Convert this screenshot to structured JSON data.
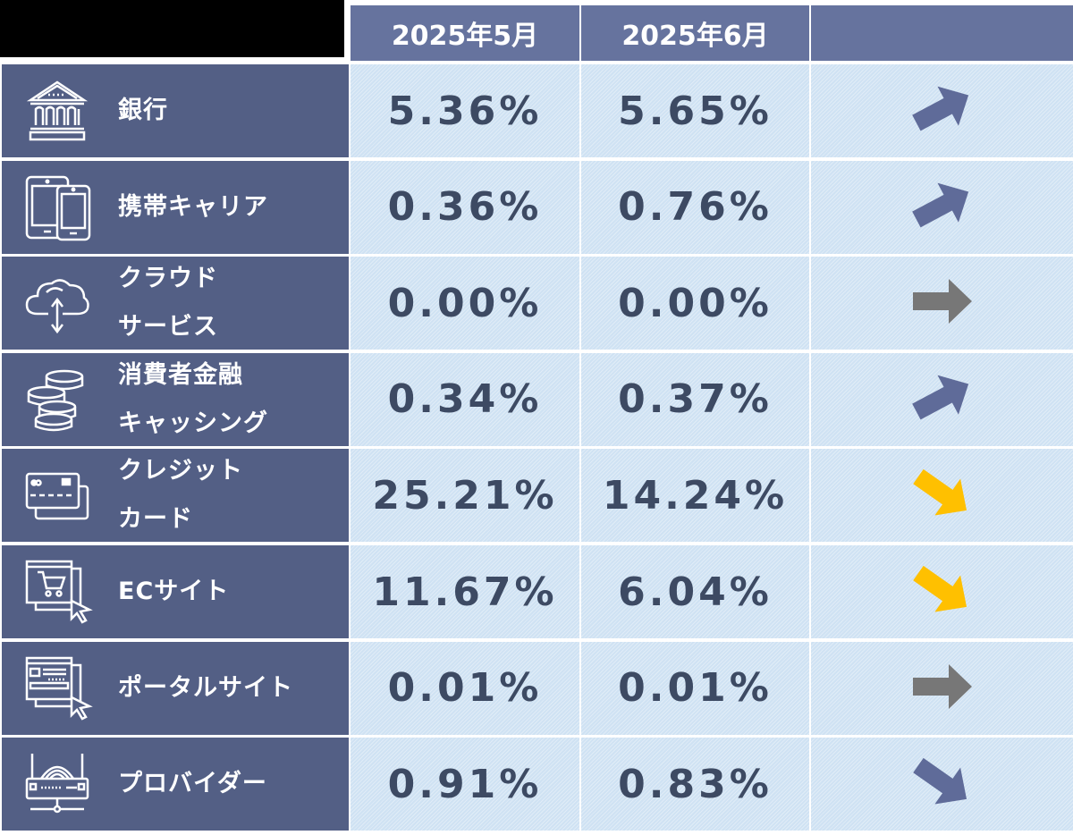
{
  "header": {
    "col1": "2025年5月",
    "col2": "2025年6月",
    "col3": ""
  },
  "rows": [
    {
      "line1": "銀行",
      "line2": "",
      "icon": "bank-icon",
      "may": "5.36%",
      "june": "5.65%",
      "trend": "up",
      "trend_color": "#5f6b99"
    },
    {
      "line1": "携帯キャリア",
      "line2": "",
      "icon": "mobile-phones-icon",
      "may": "0.36%",
      "june": "0.76%",
      "trend": "up",
      "trend_color": "#5f6b99"
    },
    {
      "line1": "クラウド",
      "line2": "サービス",
      "icon": "cloud-transfer-icon",
      "may": "0.00%",
      "june": "0.00%",
      "trend": "flat",
      "trend_color": "#777777"
    },
    {
      "line1": "消費者金融",
      "line2": "キャッシング",
      "icon": "coin-stack-icon",
      "may": "0.34%",
      "june": "0.37%",
      "trend": "up",
      "trend_color": "#5f6b99"
    },
    {
      "line1": "クレジット",
      "line2": "カード",
      "icon": "credit-card-icon",
      "may": "25.21%",
      "june": "14.24%",
      "trend": "down",
      "trend_color": "#ffc000"
    },
    {
      "line1": "ECサイト",
      "line2": "",
      "icon": "ec-cart-icon",
      "may": "11.67%",
      "june": "6.04%",
      "trend": "down",
      "trend_color": "#ffc000"
    },
    {
      "line1": "ポータルサイト",
      "line2": "",
      "icon": "portal-site-icon",
      "may": "0.01%",
      "june": "0.01%",
      "trend": "flat",
      "trend_color": "#777777"
    },
    {
      "line1": "プロバイダー",
      "line2": "",
      "icon": "router-icon",
      "may": "0.91%",
      "june": "0.83%",
      "trend": "down",
      "trend_color": "#5f6b99"
    }
  ],
  "colors": {
    "header_bg": "#66739e",
    "label_bg": "#535f85",
    "cell_bg": "#cfe2f3",
    "value_text": "#3d4a63",
    "up_arrow": "#5f6b99",
    "flat_arrow": "#777777",
    "down_alert_arrow": "#ffc000"
  }
}
